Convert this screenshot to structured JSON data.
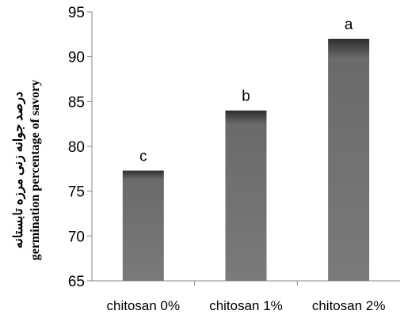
{
  "chart_data": {
    "type": "bar",
    "categories": [
      "chitosan 0%",
      "chitosan 1%",
      "chitosan 2%"
    ],
    "values": [
      77.3,
      84.0,
      92.0
    ],
    "annotations": [
      "c",
      "b",
      "a"
    ],
    "ylabel_lines": [
      "درصد جوانه زنی مرزه تابستانه",
      "germination percentage of savory"
    ],
    "xlabel": "",
    "ylim": [
      65,
      95
    ],
    "yticks": [
      65,
      70,
      75,
      80,
      85,
      90,
      95
    ],
    "legend": "none",
    "grid": false,
    "colors": {
      "bar": "#6e6e6e",
      "bar_light": "#9a9a9a",
      "bar_dark": "#3c3c3c",
      "axis": "#868686"
    }
  }
}
